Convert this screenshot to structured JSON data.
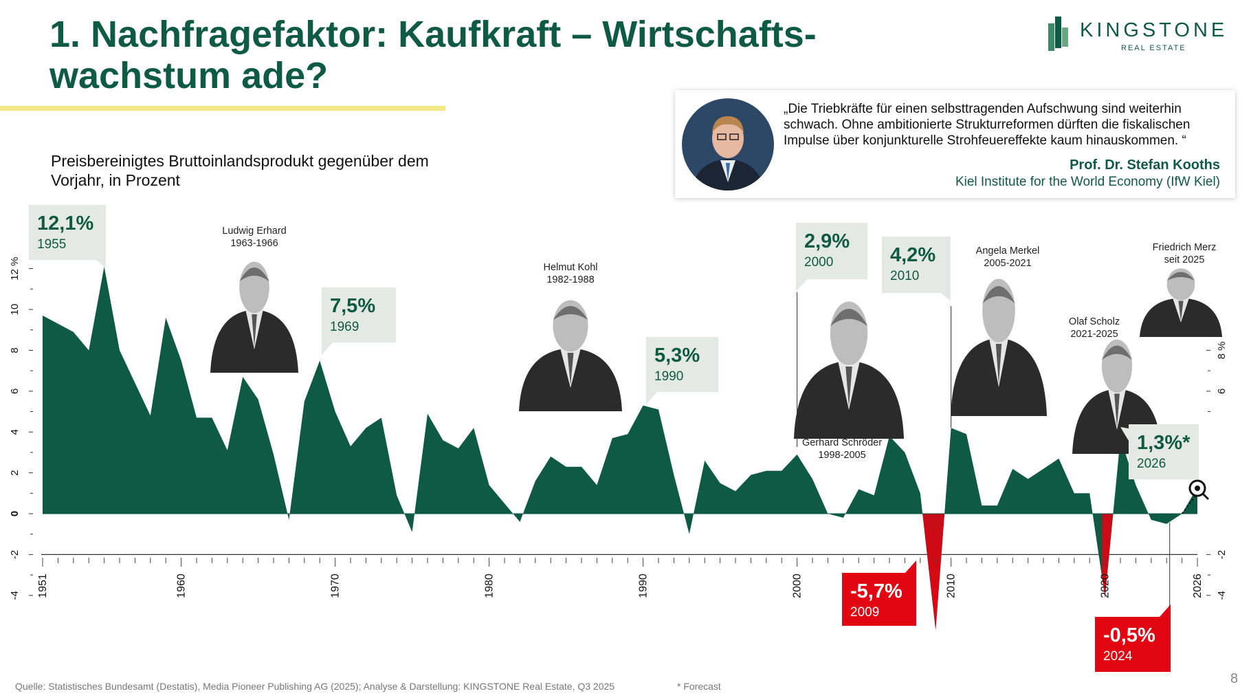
{
  "title": "1. Nachfragefaktor: Kaufkraft – Wirtschafts-\nwachstum ade?",
  "logo": {
    "word": "KINGSTONE",
    "sub": "REAL ESTATE"
  },
  "subtitle": "Preisbereinigtes Bruttoinlandsprodukt gegenüber dem Vorjahr, in Prozent",
  "quote": {
    "text": "„Die Triebkräfte für einen selbsttragenden Aufschwung sind weiterhin schwach. Ohne ambitionierte Strukturreformen dürften die fiskalischen Impulse über konjunkturelle Strohfeuereffekte kaum hinauskommen. “",
    "author": "Prof. Dr. Stefan Kooths",
    "institution": "Kiel Institute for the World Economy (IfW Kiel)"
  },
  "colors": {
    "green": "#0f5a43",
    "red": "#e20613",
    "label_bg": "#e4e9e6",
    "underline": "#f3e884"
  },
  "source": "Quelle: Statistisches Bundesamt (Destatis), Media Pioneer Publishing AG (2025); Analyse & Darstellung: KINGSTONE Real Estate, Q3 2025",
  "forecast_note": "* Forecast",
  "page_number": "8",
  "chart_data": {
    "type": "area",
    "title": "Preisbereinigtes Bruttoinlandsprodukt gegenüber dem Vorjahr, in Prozent",
    "ylabel": "%",
    "xlim": [
      1951,
      2026
    ],
    "ylim": [
      -4,
      12
    ],
    "y_ticks": [
      -4,
      -2,
      0,
      2,
      4,
      6,
      8,
      10,
      12
    ],
    "y_tick_labels": [
      "-4",
      "-2",
      "0",
      "2",
      "4",
      "6",
      "8",
      "10",
      "12 %"
    ],
    "right_y_ticks": [
      -4,
      -2,
      6,
      8
    ],
    "right_y_tick_labels": [
      "-4",
      "-2",
      "6",
      "8 %"
    ],
    "x_tick_labels": [
      "1951",
      "1960",
      "1970",
      "1980",
      "1990",
      "2000",
      "2010",
      "2020",
      "2026"
    ],
    "x": [
      1951,
      1952,
      1953,
      1954,
      1955,
      1956,
      1957,
      1958,
      1959,
      1960,
      1961,
      1962,
      1963,
      1964,
      1965,
      1966,
      1967,
      1968,
      1969,
      1970,
      1971,
      1972,
      1973,
      1974,
      1975,
      1976,
      1977,
      1978,
      1979,
      1980,
      1981,
      1982,
      1983,
      1984,
      1985,
      1986,
      1987,
      1988,
      1989,
      1990,
      1991,
      1992,
      1993,
      1994,
      1995,
      1996,
      1997,
      1998,
      1999,
      2000,
      2001,
      2002,
      2003,
      2004,
      2005,
      2006,
      2007,
      2008,
      2009,
      2010,
      2011,
      2012,
      2013,
      2014,
      2015,
      2016,
      2017,
      2018,
      2019,
      2020,
      2021,
      2022,
      2023,
      2024,
      2025,
      2026
    ],
    "values": [
      9.7,
      9.3,
      8.9,
      8.0,
      12.1,
      8.0,
      6.4,
      4.8,
      9.6,
      7.5,
      4.7,
      4.7,
      3.1,
      6.7,
      5.6,
      2.9,
      -0.3,
      5.5,
      7.5,
      5.0,
      3.3,
      4.2,
      4.7,
      0.9,
      -0.9,
      4.9,
      3.6,
      3.2,
      4.2,
      1.4,
      0.5,
      -0.4,
      1.6,
      2.8,
      2.3,
      2.3,
      1.4,
      3.7,
      3.9,
      5.3,
      5.1,
      1.9,
      -1.0,
      2.6,
      1.5,
      1.1,
      1.9,
      2.1,
      2.1,
      2.9,
      1.7,
      0.0,
      -0.2,
      1.2,
      0.9,
      3.8,
      3.0,
      1.0,
      -5.7,
      4.2,
      3.9,
      0.4,
      0.4,
      2.2,
      1.7,
      2.2,
      2.7,
      1.0,
      1.0,
      -4.1,
      3.7,
      1.4,
      -0.3,
      -0.5,
      0.0,
      1.3
    ],
    "highlights": [
      {
        "pct": "12,1%",
        "year": "1955",
        "style": "green"
      },
      {
        "pct": "7,5%",
        "year": "1969",
        "style": "green"
      },
      {
        "pct": "5,3%",
        "year": "1990",
        "style": "green"
      },
      {
        "pct": "2,9%",
        "year": "2000",
        "style": "green"
      },
      {
        "pct": "4,2%",
        "year": "2010",
        "style": "green"
      },
      {
        "pct": "1,3%*",
        "year": "2026",
        "style": "green"
      },
      {
        "pct": "-5,7%",
        "year": "2009",
        "style": "red"
      },
      {
        "pct": "-0,5%",
        "year": "2024",
        "style": "red"
      }
    ],
    "chancellors": [
      {
        "name": "Ludwig Erhard",
        "term": "1963-1966"
      },
      {
        "name": "Helmut Kohl",
        "term": "1982-1988"
      },
      {
        "name": "Gerhard Schröder",
        "term": "1998-2005"
      },
      {
        "name": "Angela Merkel",
        "term": "2005-2021"
      },
      {
        "name": "Olaf Scholz",
        "term": "2021-2025"
      },
      {
        "name": "Friedrich Merz",
        "term": "seit 2025"
      }
    ]
  }
}
